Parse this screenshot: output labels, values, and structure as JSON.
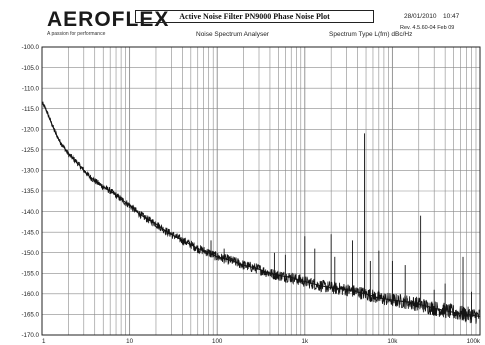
{
  "header": {
    "logo_text": "AEROFLEX",
    "logo_tagline": "A passion for performance",
    "title": "Active Noise Filter  PN9000  Phase Noise Plot",
    "date": "28/01/2010",
    "time": "10:47",
    "revision": "Rev. 4.5.60-04 Feb 09",
    "subtitle": "Noise Spectrum Analyser",
    "spectrum_type": "Spectrum Type  L(fm) dBc/Hz"
  },
  "colors": {
    "trace": "#141414",
    "grid": "#8a8a8a",
    "frame": "#222222"
  },
  "chart_data": {
    "type": "line",
    "title": "Active Noise Filter  PN9000  Phase Noise Plot",
    "xscale": "log",
    "xlim": [
      1,
      100000
    ],
    "ylim": [
      -170,
      -100
    ],
    "y_ticks": [
      -100,
      -105,
      -110,
      -115,
      -120,
      -125,
      -130,
      -135,
      -140,
      -145,
      -150,
      -155,
      -160,
      -165,
      -170
    ],
    "y_tick_labels": [
      "-100.0",
      "-105.0",
      "-110.0",
      "-115.0",
      "-120.0",
      "-125.0",
      "-130.0",
      "-135.0",
      "-140.0",
      "-145.0",
      "-150.0",
      "-155.0",
      "-160.0",
      "-165.0",
      "-170.0"
    ],
    "x_ticks": [
      1,
      10,
      100,
      1000,
      10000,
      100000
    ],
    "x_tick_labels": [
      "1",
      "10",
      "100",
      "1k",
      "10k",
      "100k"
    ],
    "grid": true,
    "series": [
      {
        "points": [
          [
            1.0,
            -113.5
          ],
          [
            1.1,
            -115.0
          ],
          [
            1.2,
            -117.0
          ],
          [
            1.4,
            -120.5
          ],
          [
            1.6,
            -123.0
          ],
          [
            1.8,
            -124.5
          ],
          [
            2.0,
            -126.0
          ],
          [
            2.5,
            -128.0
          ],
          [
            3.0,
            -130.0
          ],
          [
            3.5,
            -131.5
          ],
          [
            4.0,
            -132.5
          ],
          [
            5.0,
            -134.0
          ],
          [
            6.0,
            -135.0
          ],
          [
            7.0,
            -136.0
          ],
          [
            8.0,
            -137.0
          ],
          [
            10,
            -138.5
          ],
          [
            12,
            -140.0
          ],
          [
            15,
            -141.5
          ],
          [
            20,
            -143.0
          ],
          [
            25,
            -144.5
          ],
          [
            30,
            -145.5
          ],
          [
            40,
            -147.0
          ],
          [
            50,
            -148.0
          ],
          [
            60,
            -149.0
          ],
          [
            70,
            -149.5
          ],
          [
            80,
            -150.0
          ],
          [
            100,
            -151.0
          ],
          [
            150,
            -152.0
          ],
          [
            200,
            -153.0
          ],
          [
            300,
            -154.0
          ],
          [
            400,
            -155.0
          ],
          [
            500,
            -155.5
          ],
          [
            700,
            -156.0
          ],
          [
            1000,
            -157.0
          ],
          [
            1500,
            -158.0
          ],
          [
            2000,
            -158.5
          ],
          [
            3000,
            -159.0
          ],
          [
            5000,
            -160.0
          ],
          [
            7000,
            -161.0
          ],
          [
            10000,
            -161.5
          ],
          [
            15000,
            -162.0
          ],
          [
            20000,
            -162.5
          ],
          [
            30000,
            -163.5
          ],
          [
            50000,
            -164.5
          ],
          [
            70000,
            -165.0
          ],
          [
            100000,
            -165.5
          ]
        ]
      }
    ],
    "spurs": [
      [
        85,
        -147.0
      ],
      [
        120,
        -149.0
      ],
      [
        450,
        -150.0
      ],
      [
        600,
        -150.5
      ],
      [
        1000,
        -146.0
      ],
      [
        1300,
        -149.0
      ],
      [
        2000,
        -145.5
      ],
      [
        2200,
        -151.0
      ],
      [
        3500,
        -147.0
      ],
      [
        4800,
        -121.0
      ],
      [
        5600,
        -152.0
      ],
      [
        7000,
        -149.5
      ],
      [
        10000,
        -152.0
      ],
      [
        14000,
        -153.0
      ],
      [
        21000,
        -141.0
      ],
      [
        30000,
        -159.0
      ],
      [
        40000,
        -157.5
      ],
      [
        64000,
        -151.0
      ],
      [
        80000,
        -159.5
      ]
    ]
  }
}
